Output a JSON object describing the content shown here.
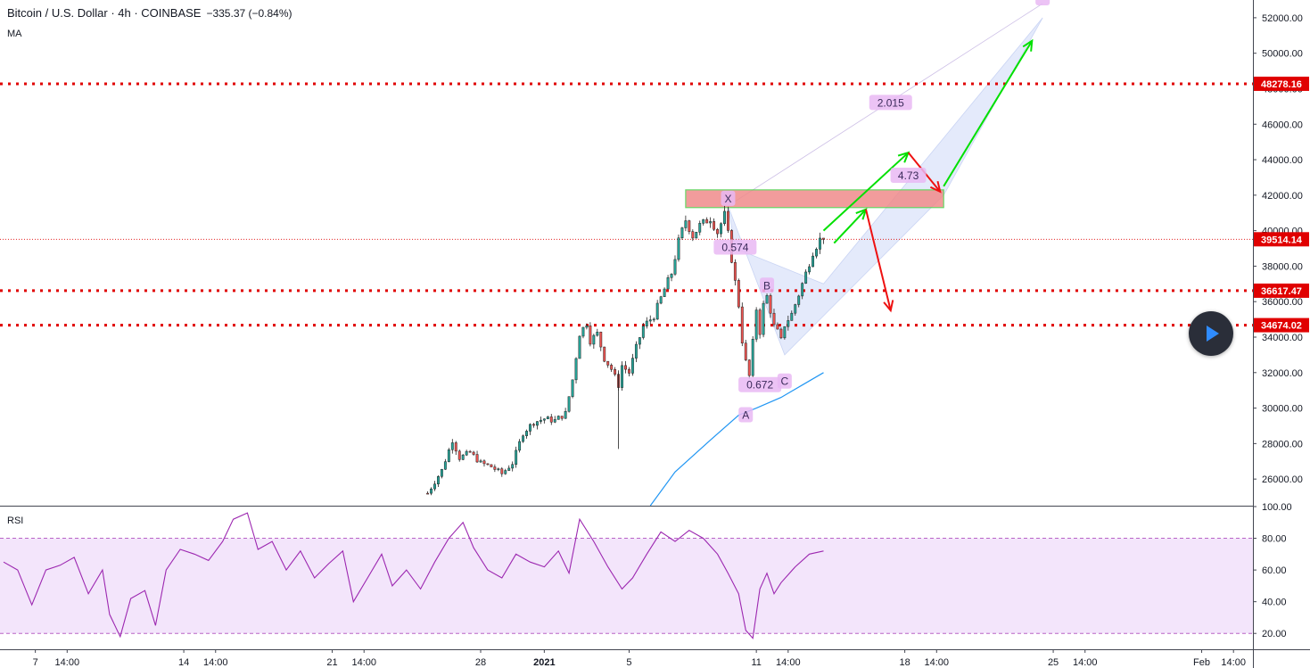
{
  "header": {
    "symbol": "Bitcoin / U.S. Dollar · 4h · COINBASE",
    "change": "−335.37 (−0.84%)",
    "indicator": "MA"
  },
  "colors": {
    "up": "#26a69a",
    "down": "#ef5350",
    "level_line": "#e00000",
    "ma_line": "#2196f3",
    "rsi_line": "#9c27b0",
    "rsi_band": "#f3e5fb",
    "pattern_fill": "#dbe3fa",
    "label_bg": "#e9b8f3",
    "arrow_green": "#00e000",
    "arrow_red": "#ee1111"
  },
  "chart_data": [
    {
      "type": "candlestick",
      "panel": "price",
      "ylim": [
        24500,
        53000
      ],
      "y_ticks": [
        26000,
        28000,
        30000,
        32000,
        34000,
        36000,
        38000,
        40000,
        42000,
        44000,
        46000,
        48000,
        50000,
        52000
      ],
      "x_ticks": [
        {
          "label": "7",
          "t": 9
        },
        {
          "label": "14:00",
          "t": 18
        },
        {
          "label": "14",
          "t": 51
        },
        {
          "label": "14:00",
          "t": 60
        },
        {
          "label": "21",
          "t": 93
        },
        {
          "label": "14:00",
          "t": 102
        },
        {
          "label": "28",
          "t": 135
        },
        {
          "label": "2021",
          "t": 153
        },
        {
          "label": "5",
          "t": 177
        },
        {
          "label": "11",
          "t": 213
        },
        {
          "label": "14:00",
          "t": 222
        },
        {
          "label": "18",
          "t": 255
        },
        {
          "label": "14:00",
          "t": 264
        },
        {
          "label": "25",
          "t": 297
        },
        {
          "label": "14:00",
          "t": 306
        },
        {
          "label": "Feb",
          "t": 339
        },
        {
          "label": "14:00",
          "t": 348
        }
      ],
      "x_range": [
        -1,
        353.5
      ],
      "horizontal_levels": [
        {
          "label": "48278.16",
          "value": 48278.16
        },
        {
          "label": "36617.47",
          "value": 36617.47
        },
        {
          "label": "34674.02",
          "value": 34674.02
        }
      ],
      "last_price": {
        "label": "39514.14",
        "value": 39514.14
      },
      "price_path": [
        [
          120,
          25200
        ],
        [
          124,
          26500
        ],
        [
          127,
          28200
        ],
        [
          129,
          27200
        ],
        [
          132,
          27500
        ],
        [
          135,
          26900
        ],
        [
          138,
          26700
        ],
        [
          141,
          26300
        ],
        [
          144,
          26900
        ],
        [
          147,
          28600
        ],
        [
          150,
          29200
        ],
        [
          153,
          29400
        ],
        [
          156,
          29300
        ],
        [
          159,
          29700
        ],
        [
          161,
          31600
        ],
        [
          163,
          34200
        ],
        [
          165,
          34800
        ],
        [
          166,
          33800
        ],
        [
          168,
          34200
        ],
        [
          170,
          32800
        ],
        [
          172,
          32200
        ],
        [
          174,
          31300
        ],
        [
          175,
          32400
        ],
        [
          177,
          32000
        ],
        [
          179,
          33400
        ],
        [
          181,
          34600
        ],
        [
          184,
          35200
        ],
        [
          187,
          36700
        ],
        [
          189,
          37600
        ],
        [
          191,
          39400
        ],
        [
          193,
          40600
        ],
        [
          195,
          39700
        ],
        [
          197,
          40300
        ],
        [
          200,
          40700
        ],
        [
          202,
          39900
        ],
        [
          204,
          40900
        ],
        [
          205,
          39800
        ],
        [
          206,
          38400
        ],
        [
          207,
          37100
        ],
        [
          208,
          35800
        ],
        [
          209,
          33800
        ],
        [
          210,
          32600
        ],
        [
          211,
          31800
        ],
        [
          212,
          33700
        ],
        [
          213,
          35600
        ],
        [
          214,
          34300
        ],
        [
          215,
          35800
        ],
        [
          216,
          36300
        ],
        [
          217,
          35500
        ],
        [
          218,
          34600
        ],
        [
          219,
          34300
        ],
        [
          220,
          33800
        ],
        [
          221,
          34700
        ],
        [
          223,
          35300
        ],
        [
          225,
          36400
        ],
        [
          227,
          37600
        ],
        [
          229,
          38800
        ],
        [
          231,
          39500
        ],
        [
          232,
          39514
        ]
      ],
      "annotations": [
        {
          "text": "X",
          "t": 205,
          "v": 41800
        },
        {
          "text": "0.574",
          "t": 207,
          "v": 39050
        },
        {
          "text": "B",
          "t": 216,
          "v": 36900
        },
        {
          "text": "0.672",
          "t": 214,
          "v": 31300
        },
        {
          "text": "C",
          "t": 221,
          "v": 31500
        },
        {
          "text": "A",
          "t": 210,
          "v": 29600
        },
        {
          "text": "2.015",
          "t": 251,
          "v": 47200
        },
        {
          "text": "4.73",
          "t": 256,
          "v": 43100
        },
        {
          "text": "",
          "t": 294,
          "v": 53100
        }
      ],
      "level_zones": [
        {
          "t0": 193,
          "t1": 266,
          "v0": 41300,
          "v1": 42300
        }
      ],
      "ma_path": [
        [
          183,
          24500
        ],
        [
          190,
          26400
        ],
        [
          200,
          28200
        ],
        [
          208,
          29600
        ],
        [
          213,
          30000
        ],
        [
          220,
          30600
        ],
        [
          226,
          31300
        ],
        [
          232,
          32000
        ]
      ]
    },
    {
      "type": "line",
      "panel": "rsi",
      "title": "RSI",
      "ylim": [
        10,
        100
      ],
      "y_ticks": [
        20,
        40,
        60,
        80,
        100
      ],
      "band": [
        20,
        80
      ],
      "values": [
        [
          0,
          65
        ],
        [
          4,
          60
        ],
        [
          8,
          38
        ],
        [
          12,
          60
        ],
        [
          16,
          63
        ],
        [
          20,
          68
        ],
        [
          24,
          45
        ],
        [
          28,
          60
        ],
        [
          30,
          32
        ],
        [
          33,
          18
        ],
        [
          36,
          42
        ],
        [
          40,
          47
        ],
        [
          43,
          25
        ],
        [
          46,
          60
        ],
        [
          50,
          73
        ],
        [
          54,
          70
        ],
        [
          58,
          66
        ],
        [
          62,
          78
        ],
        [
          65,
          92
        ],
        [
          69,
          96
        ],
        [
          72,
          73
        ],
        [
          76,
          78
        ],
        [
          80,
          60
        ],
        [
          84,
          72
        ],
        [
          88,
          55
        ],
        [
          92,
          64
        ],
        [
          96,
          72
        ],
        [
          99,
          40
        ],
        [
          103,
          55
        ],
        [
          107,
          70
        ],
        [
          110,
          50
        ],
        [
          114,
          60
        ],
        [
          118,
          48
        ],
        [
          122,
          65
        ],
        [
          126,
          80
        ],
        [
          130,
          90
        ],
        [
          133,
          74
        ],
        [
          137,
          60
        ],
        [
          141,
          55
        ],
        [
          145,
          70
        ],
        [
          149,
          65
        ],
        [
          153,
          62
        ],
        [
          157,
          72
        ],
        [
          160,
          58
        ],
        [
          163,
          92
        ],
        [
          167,
          78
        ],
        [
          171,
          62
        ],
        [
          175,
          48
        ],
        [
          178,
          55
        ],
        [
          182,
          70
        ],
        [
          186,
          84
        ],
        [
          190,
          78
        ],
        [
          194,
          85
        ],
        [
          198,
          80
        ],
        [
          202,
          70
        ],
        [
          205,
          58
        ],
        [
          208,
          45
        ],
        [
          210,
          22
        ],
        [
          212,
          17
        ],
        [
          214,
          48
        ],
        [
          216,
          58
        ],
        [
          218,
          45
        ],
        [
          220,
          52
        ],
        [
          224,
          62
        ],
        [
          228,
          70
        ],
        [
          232,
          72
        ]
      ]
    }
  ]
}
